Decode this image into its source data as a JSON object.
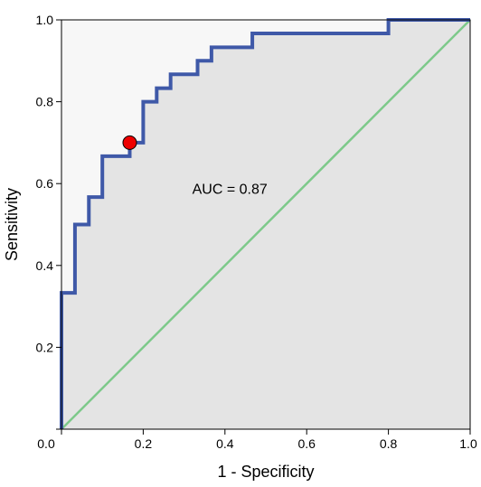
{
  "chart_data": {
    "type": "line",
    "title": "",
    "xlabel": "1 - Specificity",
    "ylabel": "Sensitivity",
    "xlim": [
      0,
      1
    ],
    "ylim": [
      0,
      1
    ],
    "x_ticks": [
      "0.0",
      "0.2",
      "0.4",
      "0.6",
      "0.8",
      "1.0"
    ],
    "y_ticks": [
      "0.2",
      "0.4",
      "0.6",
      "0.8",
      "1.0"
    ],
    "grid": false,
    "annotation": "AUC = 0.87",
    "series": [
      {
        "kind": "roc_curve",
        "color": "#3f59a8",
        "points": [
          [
            0.0,
            0.0
          ],
          [
            0.0,
            0.333
          ],
          [
            0.033,
            0.333
          ],
          [
            0.033,
            0.5
          ],
          [
            0.067,
            0.5
          ],
          [
            0.067,
            0.567
          ],
          [
            0.1,
            0.567
          ],
          [
            0.1,
            0.667
          ],
          [
            0.167,
            0.667
          ],
          [
            0.167,
            0.7
          ],
          [
            0.2,
            0.7
          ],
          [
            0.2,
            0.8
          ],
          [
            0.233,
            0.8
          ],
          [
            0.233,
            0.833
          ],
          [
            0.267,
            0.833
          ],
          [
            0.267,
            0.867
          ],
          [
            0.333,
            0.867
          ],
          [
            0.333,
            0.9
          ],
          [
            0.367,
            0.9
          ],
          [
            0.367,
            0.933
          ],
          [
            0.467,
            0.933
          ],
          [
            0.467,
            0.967
          ],
          [
            0.8,
            0.967
          ],
          [
            0.8,
            1.0
          ],
          [
            1.0,
            1.0
          ]
        ]
      },
      {
        "kind": "reference_line",
        "color": "#7dc98a",
        "points": [
          [
            0,
            0
          ],
          [
            1,
            1
          ]
        ]
      }
    ],
    "highlight_point": {
      "x": 0.167,
      "y": 0.7,
      "color": "#ee0000"
    },
    "colors": {
      "plot_background": "#f7f7f7",
      "auc_fill": "#e4e4e4"
    }
  }
}
